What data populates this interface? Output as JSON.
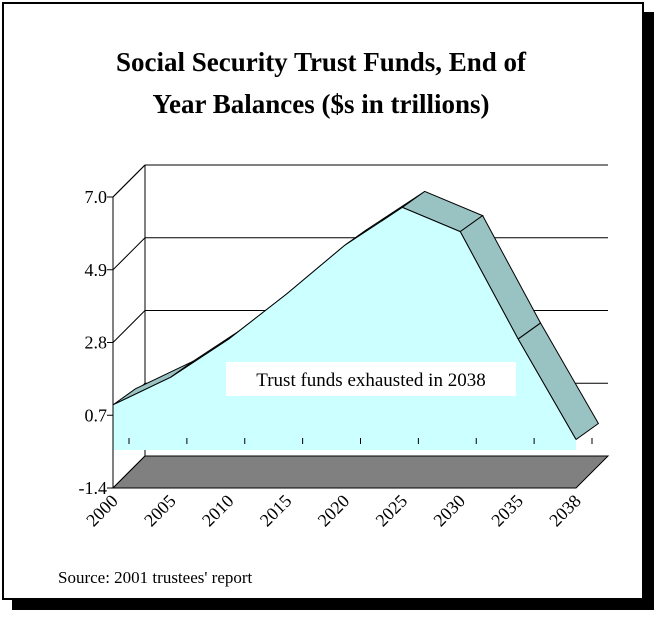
{
  "chart_data": {
    "type": "area",
    "title_line1": "Social Security Trust Funds, End of",
    "title_line2": "Year Balances ($s in trillions)",
    "x": [
      "2000",
      "2005",
      "2010",
      "2015",
      "2020",
      "2025",
      "2030",
      "2035",
      "2038"
    ],
    "values": [
      1.0,
      1.8,
      2.9,
      4.2,
      5.6,
      6.7,
      6.0,
      2.9,
      0.0
    ],
    "yticks": [
      "7.0",
      "4.9",
      "2.8",
      "0.7",
      "-1.4"
    ],
    "ylim": [
      -1.4,
      7.0
    ],
    "grid": true,
    "colors": {
      "area_face": "#ccffff",
      "area_top": "#99c2c2",
      "floor": "#808080"
    },
    "annotation": "Trust funds exhausted in 2038"
  },
  "source": "Source: 2001 trustees' report"
}
